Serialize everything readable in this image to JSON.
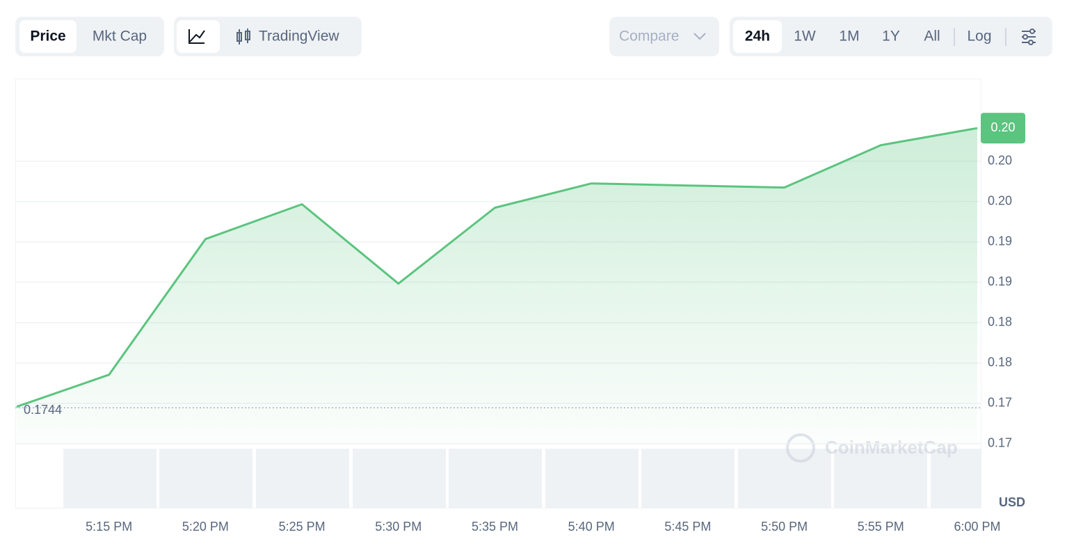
{
  "ui": {
    "tabs": [
      "Price",
      "Mkt Cap"
    ],
    "mode": "TradingView",
    "compare": "Compare",
    "ranges": [
      "24h",
      "1W",
      "1M",
      "1Y",
      "All"
    ],
    "log": "Log",
    "watermark": "CoinMarketCap"
  },
  "chart_data": {
    "type": "area",
    "categories": [
      null,
      "5:15 PM",
      "5:20 PM",
      "5:25 PM",
      "5:30 PM",
      "5:35 PM",
      "5:40 PM",
      "5:45 PM",
      "5:50 PM",
      "5:55 PM",
      "6:00 PM"
    ],
    "values": [
      0.17452,
      0.17801,
      0.1928,
      0.1966,
      0.18795,
      0.19622,
      0.19887,
      0.19864,
      0.19842,
      0.20304,
      0.2049
    ],
    "value_labels": [
      null,
      null,
      null,
      null,
      null,
      null,
      null,
      null,
      null,
      null,
      "0.20"
    ],
    "color": "#5bc47f",
    "ylim": [
      0.1635,
      0.2103
    ],
    "yticks": [
      {
        "value": 0.1705,
        "label": "0.17"
      },
      {
        "value": 0.1749,
        "label": "0.17"
      },
      {
        "value": 0.1793,
        "label": "0.18"
      },
      {
        "value": 0.1837,
        "label": "0.18"
      },
      {
        "value": 0.1881,
        "label": "0.19"
      },
      {
        "value": 0.1925,
        "label": "0.19"
      },
      {
        "value": 0.1969,
        "label": "0.20"
      },
      {
        "value": 0.2013,
        "label": "0.20"
      }
    ],
    "reference": {
      "value": 0.1744,
      "label": "0.1744"
    },
    "unit": "USD",
    "grid": true
  }
}
